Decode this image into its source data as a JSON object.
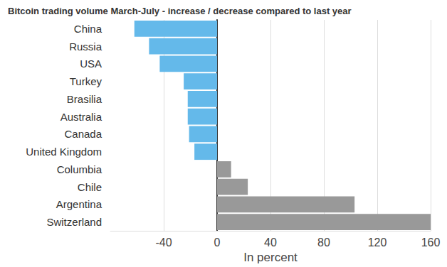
{
  "chart_data": {
    "type": "bar",
    "title": "Bitcoin trading volume March-July - increase / decrease compared to last year",
    "orientation": "horizontal",
    "categories": [
      "China",
      "Russia",
      "USA",
      "Turkey",
      "Brasilia",
      "Australia",
      "Canada",
      "United Kingdom",
      "Columbia",
      "Chile",
      "Argentina",
      "Switzerland"
    ],
    "values": [
      -62,
      -51,
      -43,
      -25,
      -22,
      -22,
      -21,
      -17,
      10.5,
      23,
      103,
      160
    ],
    "colors": [
      "#64b9ea",
      "#64b9ea",
      "#64b9ea",
      "#64b9ea",
      "#64b9ea",
      "#64b9ea",
      "#64b9ea",
      "#64b9ea",
      "#999999",
      "#999999",
      "#999999",
      "#999999"
    ],
    "xlabel": "In percent",
    "xlim": [
      -80,
      160
    ],
    "xticks": [
      -40,
      0,
      40,
      80,
      120,
      160
    ],
    "grid": true
  }
}
